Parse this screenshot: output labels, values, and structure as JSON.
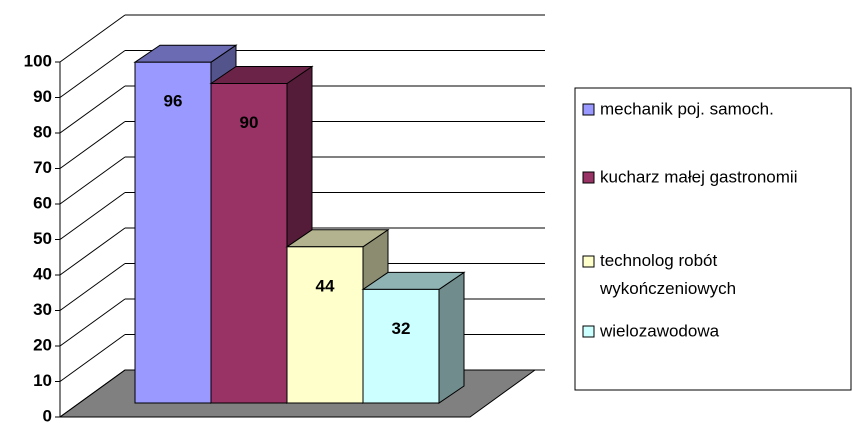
{
  "chart_data": {
    "type": "bar3d",
    "series": [
      {
        "name": "mechanik poj. samoch.",
        "color": "#9999ff",
        "values": [
          96
        ]
      },
      {
        "name": "kucharz małej gastronomii",
        "color": "#993366",
        "values": [
          90
        ]
      },
      {
        "name": "technolog robót wykończeniowych",
        "color": "#ffffcc",
        "values": [
          44
        ]
      },
      {
        "name": "wielozawodowa",
        "color": "#ccffff",
        "values": [
          32
        ]
      }
    ],
    "ylim": [
      0,
      100
    ],
    "yticks": [
      0,
      10,
      20,
      30,
      40,
      50,
      60,
      70,
      80,
      90,
      100
    ],
    "grid": true,
    "legend": "right"
  }
}
